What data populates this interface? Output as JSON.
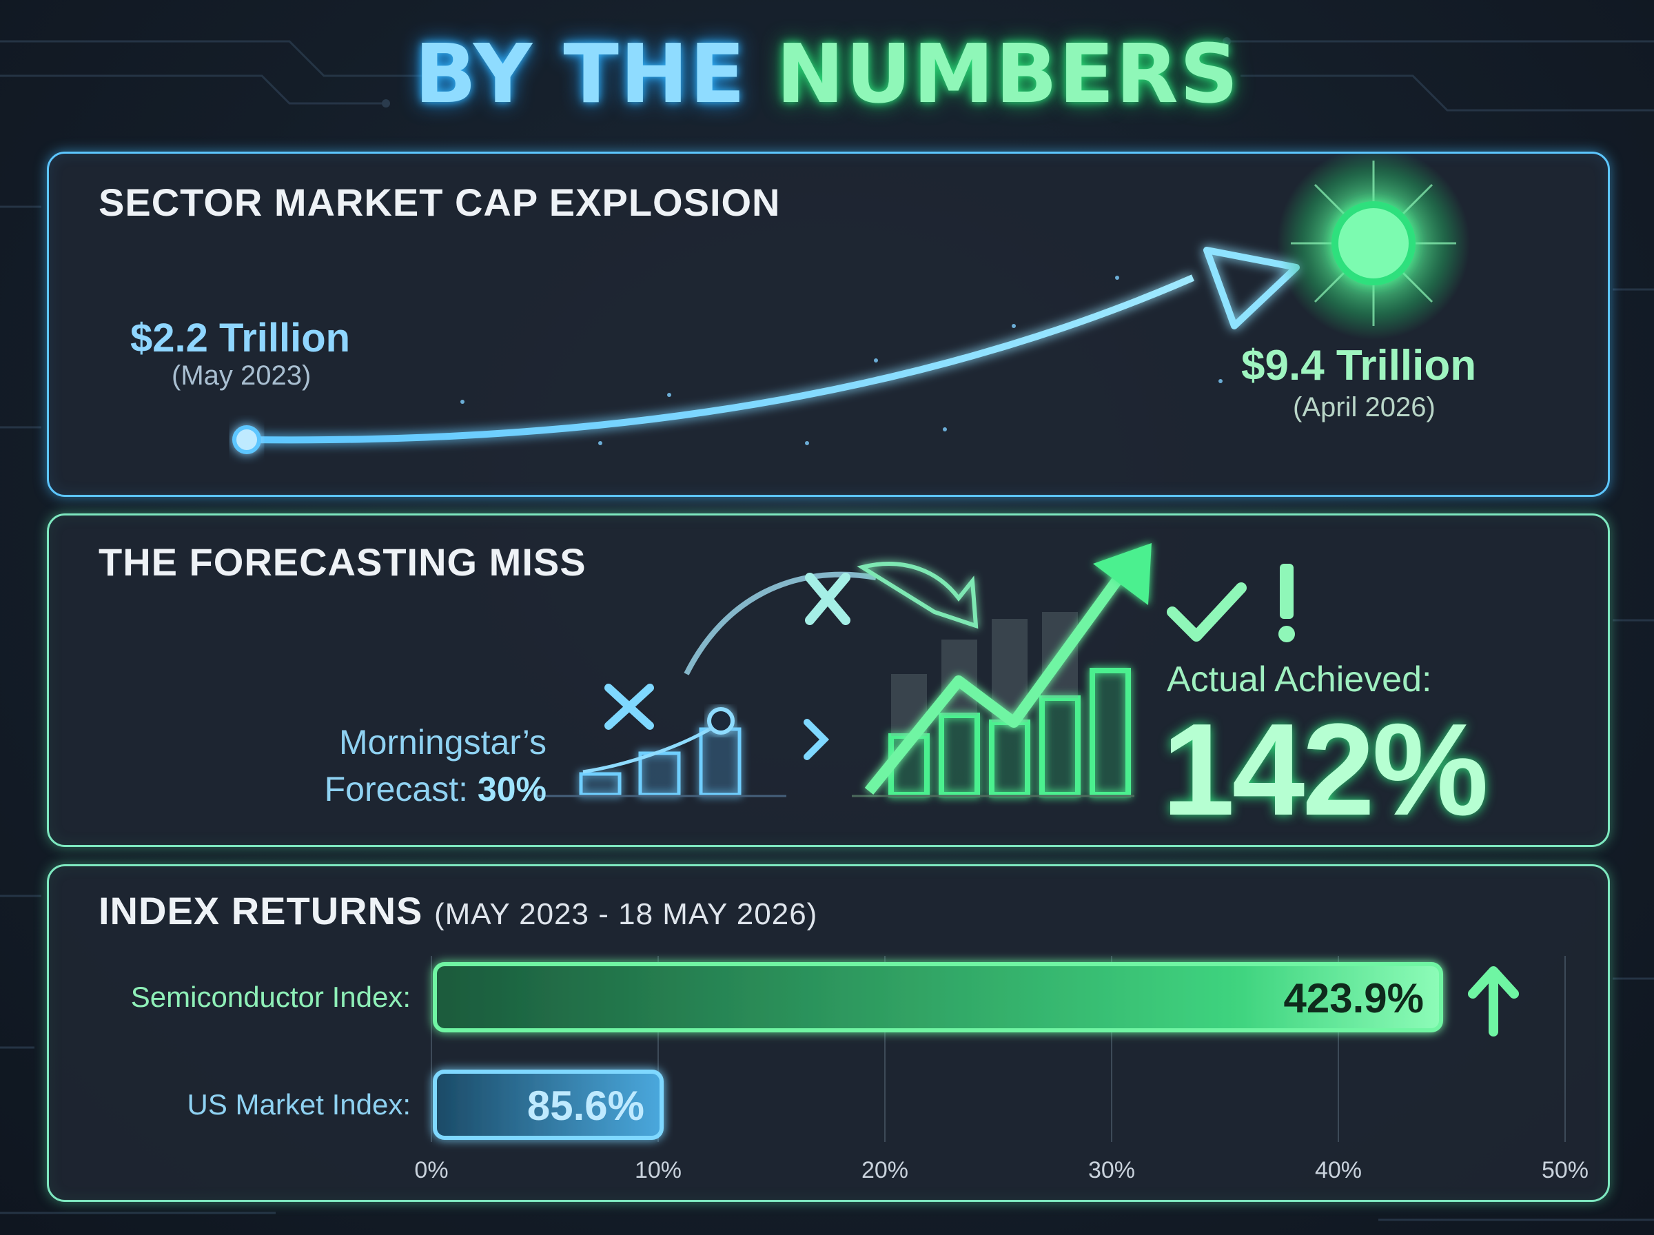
{
  "title": {
    "part1": "BY THE",
    "part2": "NUMBERS"
  },
  "colors": {
    "blue": "#5dc6ff",
    "green": "#4cf08f",
    "bg": "#141d28"
  },
  "market_cap": {
    "heading": "SECTOR MARKET CAP EXPLOSION",
    "start_value": "$2.2 Trillion",
    "start_date": "(May 2023)",
    "end_value": "$9.4 Trillion",
    "end_date": "(April 2026)"
  },
  "forecast": {
    "heading": "THE FORECASTING MISS",
    "forecast_label_line1": "Morningstar’s",
    "forecast_label_line2": "Forecast:",
    "forecast_value": "30%",
    "actual_label": "Actual Achieved:",
    "actual_value": "142%",
    "icons": [
      "x-mark-icon",
      "arrow-icon",
      "chevron-right-icon",
      "bar-chart-icon",
      "check-icon",
      "exclamation-icon"
    ]
  },
  "index_returns": {
    "heading": "INDEX RETURNS",
    "period": "(MAY 2023 - 18 MAY 2026)"
  },
  "chart_data": [
    {
      "type": "line",
      "title": "SECTOR MARKET CAP EXPLOSION",
      "series": [
        {
          "x": [
            "May 2023",
            "April 2026"
          ],
          "values": [
            2.2,
            9.4
          ]
        }
      ],
      "labels": [
        "$2.2 Trillion",
        "$9.4 Trillion"
      ]
    },
    {
      "type": "bar",
      "title": "THE FORECASTING MISS",
      "categories": [
        "Morningstar’s Forecast",
        "Actual Achieved"
      ],
      "values": [
        30,
        142
      ]
    },
    {
      "type": "bar",
      "orientation": "horizontal",
      "title": "INDEX RETURNS (MAY 2023 - 18 MAY 2026)",
      "categories": [
        "Semiconductor Index:",
        "US Market Index:"
      ],
      "values": [
        423.9,
        85.6
      ],
      "value_labels": [
        "423.9%",
        "85.6%"
      ],
      "xticks": [
        "0%",
        "10%",
        "20%",
        "30%",
        "40%",
        "50%"
      ],
      "tick_values": [
        0,
        10,
        20,
        30,
        40,
        50
      ],
      "grid": true
    }
  ]
}
